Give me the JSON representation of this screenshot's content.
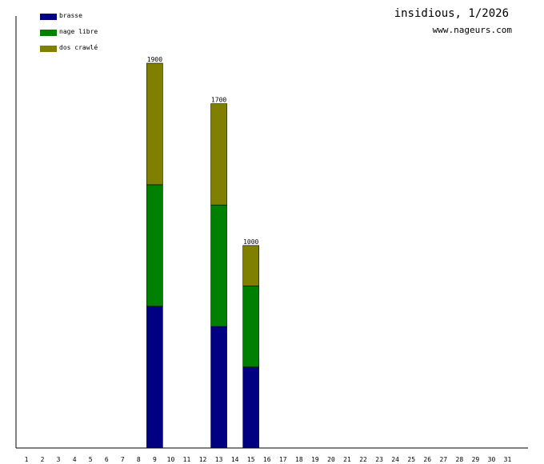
{
  "header": {
    "title": "insidious, 1/2026",
    "subtitle": "www.nageurs.com"
  },
  "colors": {
    "brasse": "#000080",
    "nage_libre": "#008000",
    "dos_crawle": "#808000"
  },
  "legend": [
    {
      "label": "brasse",
      "color": "#000080"
    },
    {
      "label": "nage libre",
      "color": "#008000"
    },
    {
      "label": "dos crawlé",
      "color": "#808000"
    }
  ],
  "chart_data": {
    "type": "bar",
    "stacked": true,
    "title": "insidious, 1/2026",
    "xlabel": "",
    "ylabel": "",
    "ylim": [
      0,
      1900
    ],
    "grid": false,
    "legend_position": "top-left",
    "categories": [
      "1",
      "2",
      "3",
      "4",
      "5",
      "6",
      "7",
      "8",
      "9",
      "10",
      "11",
      "12",
      "13",
      "14",
      "15",
      "16",
      "17",
      "18",
      "19",
      "20",
      "21",
      "22",
      "23",
      "24",
      "25",
      "26",
      "27",
      "28",
      "29",
      "30",
      "31"
    ],
    "series": [
      {
        "name": "brasse",
        "color": "#000080",
        "values": [
          0,
          0,
          0,
          0,
          0,
          0,
          0,
          0,
          700,
          0,
          0,
          0,
          600,
          0,
          400,
          0,
          0,
          0,
          0,
          0,
          0,
          0,
          0,
          0,
          0,
          0,
          0,
          0,
          0,
          0,
          0
        ]
      },
      {
        "name": "nage libre",
        "color": "#008000",
        "values": [
          0,
          0,
          0,
          0,
          0,
          0,
          0,
          0,
          600,
          0,
          0,
          0,
          600,
          0,
          400,
          0,
          0,
          0,
          0,
          0,
          0,
          0,
          0,
          0,
          0,
          0,
          0,
          0,
          0,
          0,
          0
        ]
      },
      {
        "name": "dos crawlé",
        "color": "#808000",
        "values": [
          0,
          0,
          0,
          0,
          0,
          0,
          0,
          0,
          600,
          0,
          0,
          0,
          500,
          0,
          200,
          0,
          0,
          0,
          0,
          0,
          0,
          0,
          0,
          0,
          0,
          0,
          0,
          0,
          0,
          0,
          0
        ]
      }
    ],
    "totals": [
      0,
      0,
      0,
      0,
      0,
      0,
      0,
      0,
      1900,
      0,
      0,
      0,
      1700,
      0,
      1000,
      0,
      0,
      0,
      0,
      0,
      0,
      0,
      0,
      0,
      0,
      0,
      0,
      0,
      0,
      0,
      0
    ]
  }
}
